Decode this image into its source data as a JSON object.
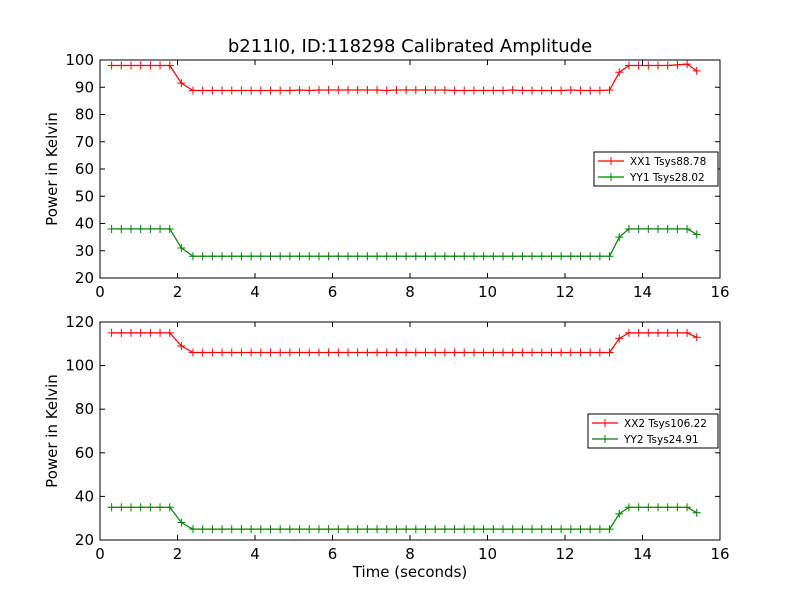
{
  "title": "b211l0, ID:118298 Calibrated Amplitude",
  "xlabel": "Time (seconds)",
  "colors": {
    "xx": "#ff0000",
    "yy": "#008000"
  },
  "chart_data": [
    {
      "type": "line",
      "title": "b211l0, ID:118298 Calibrated Amplitude",
      "xlabel": "",
      "ylabel": "Power in Kelvin",
      "xlim": [
        0,
        16
      ],
      "ylim": [
        20,
        100
      ],
      "xticks": [
        0,
        2,
        4,
        6,
        8,
        10,
        12,
        14,
        16
      ],
      "yticks": [
        20,
        30,
        40,
        50,
        60,
        70,
        80,
        90,
        100
      ],
      "grid": false,
      "legend_position": "center-right",
      "series": [
        {
          "name": "XX1 Tsys88.78",
          "color": "#ff0000",
          "marker": "+",
          "x": [
            0.3,
            0.55,
            0.8,
            1.05,
            1.3,
            1.55,
            1.8,
            2.1,
            2.4,
            2.65,
            2.9,
            3.15,
            3.4,
            3.65,
            3.9,
            4.15,
            4.4,
            4.65,
            4.9,
            5.15,
            5.4,
            5.65,
            5.9,
            6.15,
            6.4,
            6.65,
            6.9,
            7.15,
            7.4,
            7.65,
            7.9,
            8.15,
            8.4,
            8.65,
            8.9,
            9.15,
            9.4,
            9.65,
            9.9,
            10.15,
            10.4,
            10.65,
            10.9,
            11.15,
            11.4,
            11.65,
            11.9,
            12.15,
            12.4,
            12.65,
            12.9,
            13.15,
            13.4,
            13.65,
            13.9,
            14.15,
            14.4,
            14.65,
            14.9,
            15.15,
            15.4
          ],
          "y": [
            98,
            98,
            98,
            98,
            98,
            98,
            98,
            91.5,
            88.8,
            88.8,
            88.8,
            88.8,
            88.8,
            88.8,
            88.8,
            88.8,
            88.8,
            88.8,
            88.8,
            89,
            88.8,
            89,
            89,
            89,
            89,
            89,
            89,
            89,
            88.8,
            89,
            89,
            89,
            89,
            89,
            89,
            88.8,
            88.8,
            88.8,
            88.8,
            88.8,
            88.8,
            89,
            88.8,
            88.8,
            88.8,
            88.8,
            88.8,
            89,
            88.8,
            88.8,
            88.8,
            89,
            95.5,
            98,
            98,
            98,
            98,
            98,
            98.2,
            98.5,
            96
          ]
        },
        {
          "name": "YY1 Tsys28.02",
          "color": "#008000",
          "marker": "+",
          "x": [
            0.3,
            0.55,
            0.8,
            1.05,
            1.3,
            1.55,
            1.8,
            2.1,
            2.4,
            2.65,
            2.9,
            3.15,
            3.4,
            3.65,
            3.9,
            4.15,
            4.4,
            4.65,
            4.9,
            5.15,
            5.4,
            5.65,
            5.9,
            6.15,
            6.4,
            6.65,
            6.9,
            7.15,
            7.4,
            7.65,
            7.9,
            8.15,
            8.4,
            8.65,
            8.9,
            9.15,
            9.4,
            9.65,
            9.9,
            10.15,
            10.4,
            10.65,
            10.9,
            11.15,
            11.4,
            11.65,
            11.9,
            12.15,
            12.4,
            12.65,
            12.9,
            13.15,
            13.4,
            13.65,
            13.9,
            14.15,
            14.4,
            14.65,
            14.9,
            15.15,
            15.4
          ],
          "y": [
            38,
            38,
            38,
            38,
            38,
            38,
            38,
            31,
            28,
            28,
            28,
            28,
            28,
            28,
            28,
            28,
            28,
            28,
            28,
            28,
            28,
            28,
            28,
            28,
            28,
            28,
            28,
            28,
            28,
            28,
            28,
            28,
            28,
            28,
            28,
            28,
            28,
            28,
            28,
            28,
            28,
            28,
            28,
            28,
            28,
            28,
            28,
            28,
            28,
            28,
            28,
            28,
            35,
            38,
            38,
            38,
            38,
            38,
            38,
            38,
            36
          ]
        }
      ]
    },
    {
      "type": "line",
      "title": "",
      "xlabel": "Time (seconds)",
      "ylabel": "Power in Kelvin",
      "xlim": [
        0,
        16
      ],
      "ylim": [
        20,
        120
      ],
      "xticks": [
        0,
        2,
        4,
        6,
        8,
        10,
        12,
        14,
        16
      ],
      "yticks": [
        20,
        40,
        60,
        80,
        100,
        120
      ],
      "grid": false,
      "legend_position": "center-right",
      "series": [
        {
          "name": "XX2 Tsys106.22",
          "color": "#ff0000",
          "marker": "+",
          "x": [
            0.3,
            0.55,
            0.8,
            1.05,
            1.3,
            1.55,
            1.8,
            2.1,
            2.4,
            2.65,
            2.9,
            3.15,
            3.4,
            3.65,
            3.9,
            4.15,
            4.4,
            4.65,
            4.9,
            5.15,
            5.4,
            5.65,
            5.9,
            6.15,
            6.4,
            6.65,
            6.9,
            7.15,
            7.4,
            7.65,
            7.9,
            8.15,
            8.4,
            8.65,
            8.9,
            9.15,
            9.4,
            9.65,
            9.9,
            10.15,
            10.4,
            10.65,
            10.9,
            11.15,
            11.4,
            11.65,
            11.9,
            12.15,
            12.4,
            12.65,
            12.9,
            13.15,
            13.4,
            13.65,
            13.9,
            14.15,
            14.4,
            14.65,
            14.9,
            15.15,
            15.4
          ],
          "y": [
            115,
            115,
            115,
            115,
            115,
            115,
            115,
            109,
            106,
            106,
            106,
            106,
            106,
            106,
            106,
            106,
            106,
            106,
            106,
            106,
            106,
            106,
            106,
            106,
            106,
            106,
            106,
            106,
            106,
            106,
            106,
            106,
            106,
            106,
            106,
            106,
            106,
            106,
            106,
            106,
            106,
            106,
            106,
            106,
            106,
            106,
            106,
            106,
            106,
            106,
            106,
            106,
            112.5,
            115,
            115,
            115,
            115,
            115,
            115,
            115,
            113
          ]
        },
        {
          "name": "YY2 Tsys24.91",
          "color": "#008000",
          "marker": "+",
          "x": [
            0.3,
            0.55,
            0.8,
            1.05,
            1.3,
            1.55,
            1.8,
            2.1,
            2.4,
            2.65,
            2.9,
            3.15,
            3.4,
            3.65,
            3.9,
            4.15,
            4.4,
            4.65,
            4.9,
            5.15,
            5.4,
            5.65,
            5.9,
            6.15,
            6.4,
            6.65,
            6.9,
            7.15,
            7.4,
            7.65,
            7.9,
            8.15,
            8.4,
            8.65,
            8.9,
            9.15,
            9.4,
            9.65,
            9.9,
            10.15,
            10.4,
            10.65,
            10.9,
            11.15,
            11.4,
            11.65,
            11.9,
            12.15,
            12.4,
            12.65,
            12.9,
            13.15,
            13.4,
            13.65,
            13.9,
            14.15,
            14.4,
            14.65,
            14.9,
            15.15,
            15.4
          ],
          "y": [
            35,
            35,
            35,
            35,
            35,
            35,
            35,
            28,
            25,
            25,
            25,
            25,
            25,
            25,
            25,
            25,
            25,
            25,
            25,
            25,
            25,
            25,
            25,
            25,
            25,
            25,
            25,
            25,
            25,
            25,
            25,
            25,
            25,
            25,
            25,
            25,
            25,
            25,
            25,
            25,
            25,
            25,
            25,
            25,
            25,
            25,
            25,
            25,
            25,
            25,
            25,
            25,
            32,
            35,
            35,
            35,
            35,
            35,
            35,
            35,
            32.5
          ]
        }
      ]
    }
  ]
}
